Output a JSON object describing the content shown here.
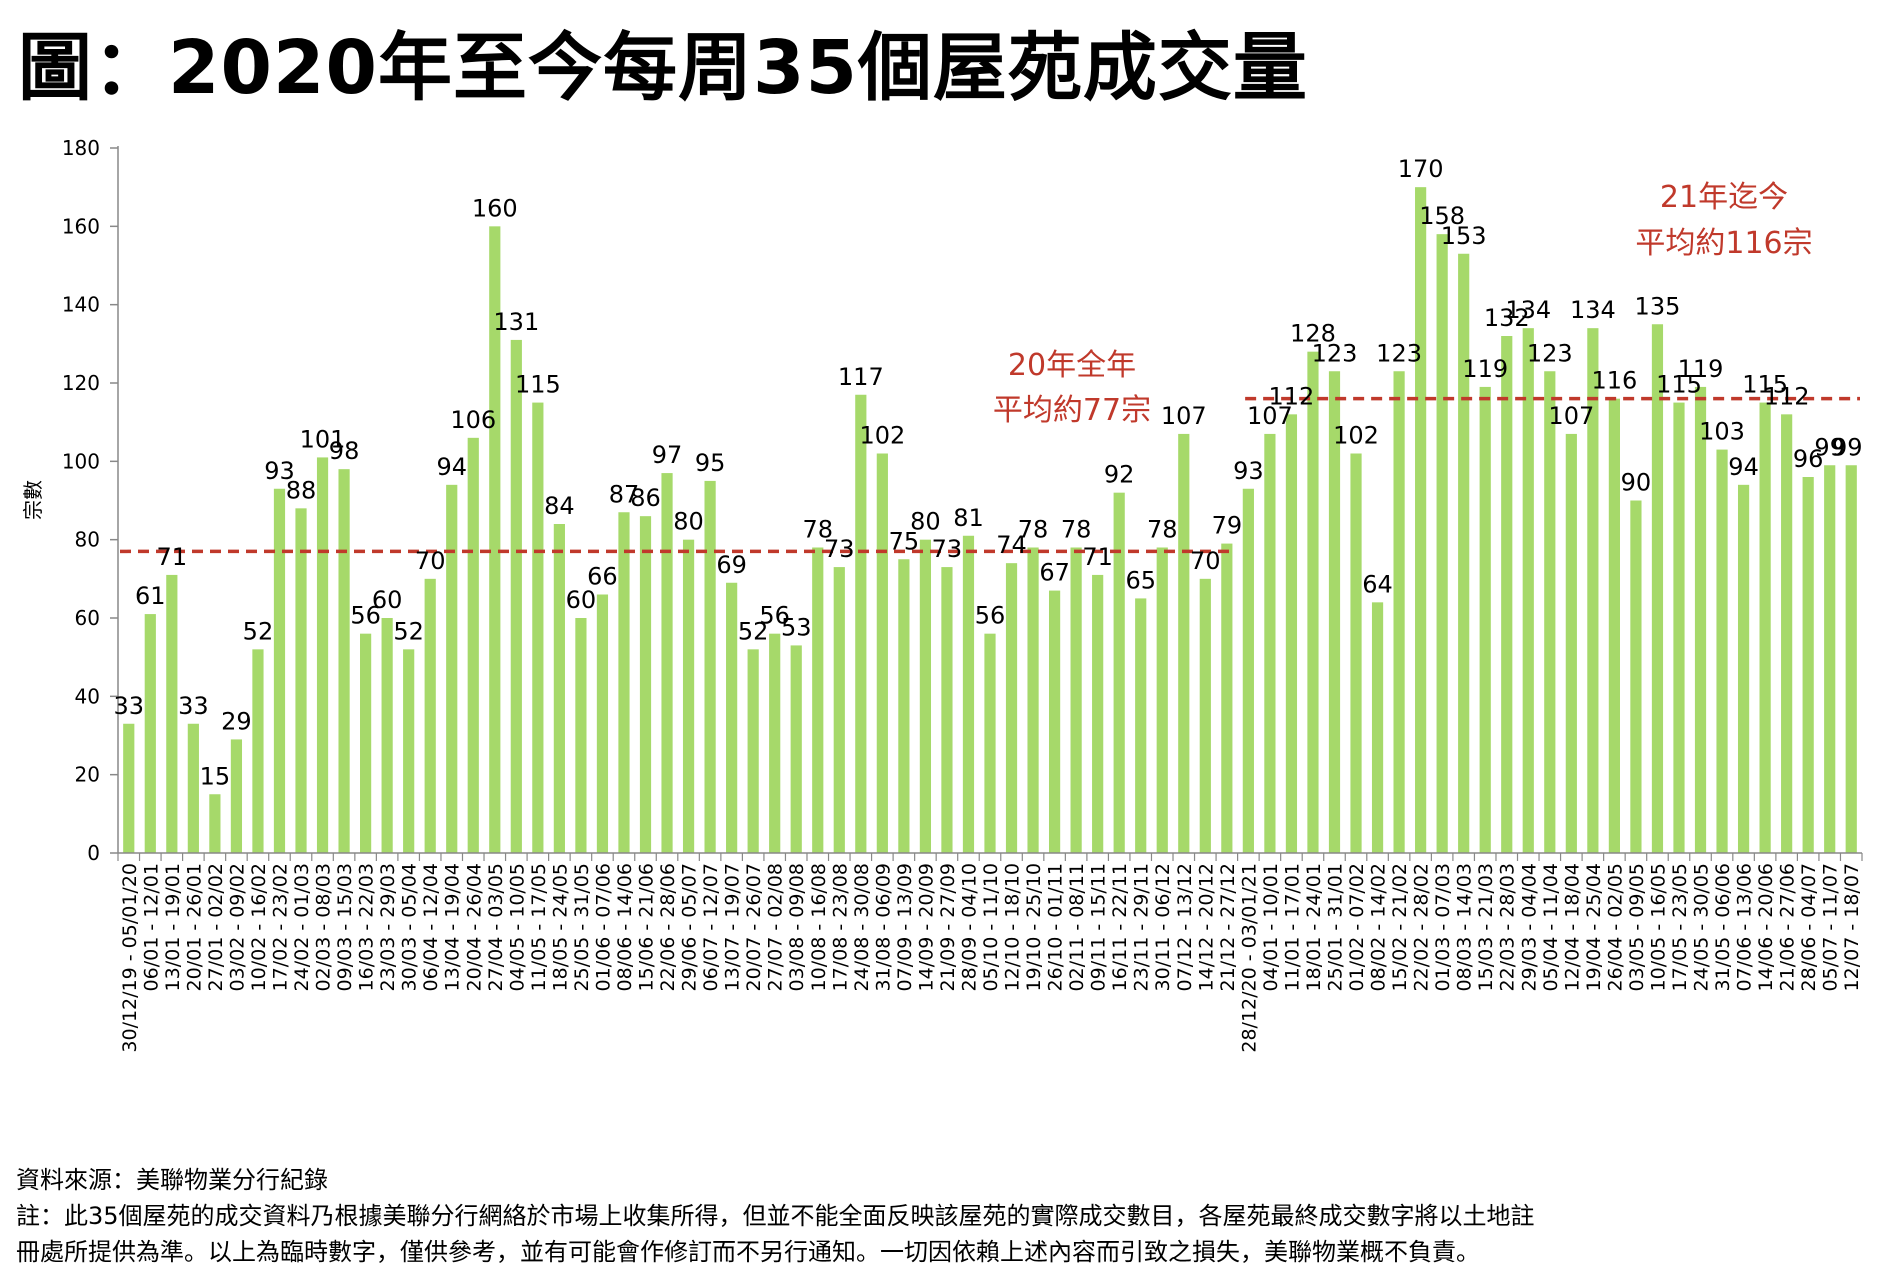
{
  "title": "圖：2020年至今每周35個屋苑成交量",
  "footer": {
    "source": "資料來源：美聯物業分行紀錄",
    "note_line1": "註：此35個屋苑的成交資料乃根據美聯分行網絡於市場上收集所得，但並不能全面反映該屋苑的實際成交數目，各屋苑最終成交數字將以土地註",
    "note_line2": "冊處所提供為準。以上為臨時數字，僅供參考，並有可能會作修訂而不另行通知。一切因依賴上述內容而引致之損失，美聯物業概不負責。"
  },
  "colors": {
    "bar": "#a6d96a",
    "avg_line": "#c0392b",
    "annotation": "#c0392b"
  },
  "chart_data": {
    "type": "bar",
    "ylabel": "宗數",
    "xlabel": "",
    "ylim": [
      0,
      180
    ],
    "yticks": [
      0,
      20,
      40,
      60,
      80,
      100,
      120,
      140,
      160,
      180
    ],
    "grid": false,
    "categories": [
      "30/12/19 - 05/01/20",
      "06/01 - 12/01",
      "13/01 - 19/01",
      "20/01 - 26/01",
      "27/01 - 02/02",
      "03/02 - 09/02",
      "10/02 - 16/02",
      "17/02 - 23/02",
      "24/02 - 01/03",
      "02/03 - 08/03",
      "09/03 - 15/03",
      "16/03 - 22/03",
      "23/03 - 29/03",
      "30/03 - 05/04",
      "06/04 - 12/04",
      "13/04 - 19/04",
      "20/04 - 26/04",
      "27/04 - 03/05",
      "04/05 - 10/05",
      "11/05 - 17/05",
      "18/05 - 24/05",
      "25/05 - 31/05",
      "01/06 - 07/06",
      "08/06 - 14/06",
      "15/06 - 21/06",
      "22/06 - 28/06",
      "29/06 - 05/07",
      "06/07 - 12/07",
      "13/07 - 19/07",
      "20/07 - 26/07",
      "27/07 - 02/08",
      "03/08 - 09/08",
      "10/08 - 16/08",
      "17/08 - 23/08",
      "24/08 - 30/08",
      "31/08 - 06/09",
      "07/09 - 13/09",
      "14/09 - 20/09",
      "21/09 - 27/09",
      "28/09 - 04/10",
      "05/10 - 11/10",
      "12/10 - 18/10",
      "19/10 - 25/10",
      "26/10 - 01/11",
      "02/11 - 08/11",
      "09/11 - 15/11",
      "16/11 - 22/11",
      "23/11 - 29/11",
      "30/11 - 06/12",
      "07/12 - 13/12",
      "14/12 - 20/12",
      "21/12 - 27/12",
      "28/12/20 - 03/01/21",
      "04/01 - 10/01",
      "11/01 - 17/01",
      "18/01 - 24/01",
      "25/01 - 31/01",
      "01/02 - 07/02",
      "08/02 - 14/02",
      "15/02 - 21/02",
      "22/02 - 28/02",
      "01/03 - 07/03",
      "08/03 - 14/03",
      "15/03 - 21/03",
      "22/03 - 28/03",
      "29/03 - 04/04",
      "05/04 - 11/04",
      "12/04 - 18/04",
      "19/04 - 25/04",
      "26/04 - 02/05",
      "03/05 - 09/05",
      "10/05 - 16/05",
      "17/05 - 23/05",
      "24/05 - 30/05",
      "31/05 - 06/06",
      "07/06 - 13/06",
      "14/06 - 20/06",
      "21/06 - 27/06",
      "28/06 - 04/07",
      "05/07 - 11/07",
      "12/07 - 18/07"
    ],
    "series": [
      {
        "values": [
          33,
          61,
          71,
          33,
          15,
          29,
          52,
          93,
          88,
          101,
          98,
          56,
          60,
          52,
          70,
          94,
          106,
          160,
          131,
          115,
          84,
          60,
          66,
          87,
          86,
          97,
          80,
          95,
          69,
          52,
          56,
          53,
          78,
          73,
          117,
          102,
          75,
          80,
          73,
          81,
          56,
          74,
          78,
          67,
          78,
          71,
          92,
          65,
          78,
          107,
          70,
          79,
          93,
          107,
          112,
          128,
          123,
          102,
          64,
          123,
          170,
          158,
          153,
          119,
          132,
          134,
          123,
          107,
          134,
          116,
          90,
          135,
          115,
          119,
          103,
          94,
          115,
          112,
          96,
          99,
          99
        ]
      }
    ],
    "averages": [
      {
        "label_line1": "20年全年",
        "label_line2": "平均約77宗",
        "value": 77,
        "from_index": 0,
        "to_index": 51
      },
      {
        "label_line1": "21年迄今",
        "label_line2": "平均約116宗",
        "value": 116,
        "from_index": 52,
        "to_index": 80
      }
    ]
  }
}
